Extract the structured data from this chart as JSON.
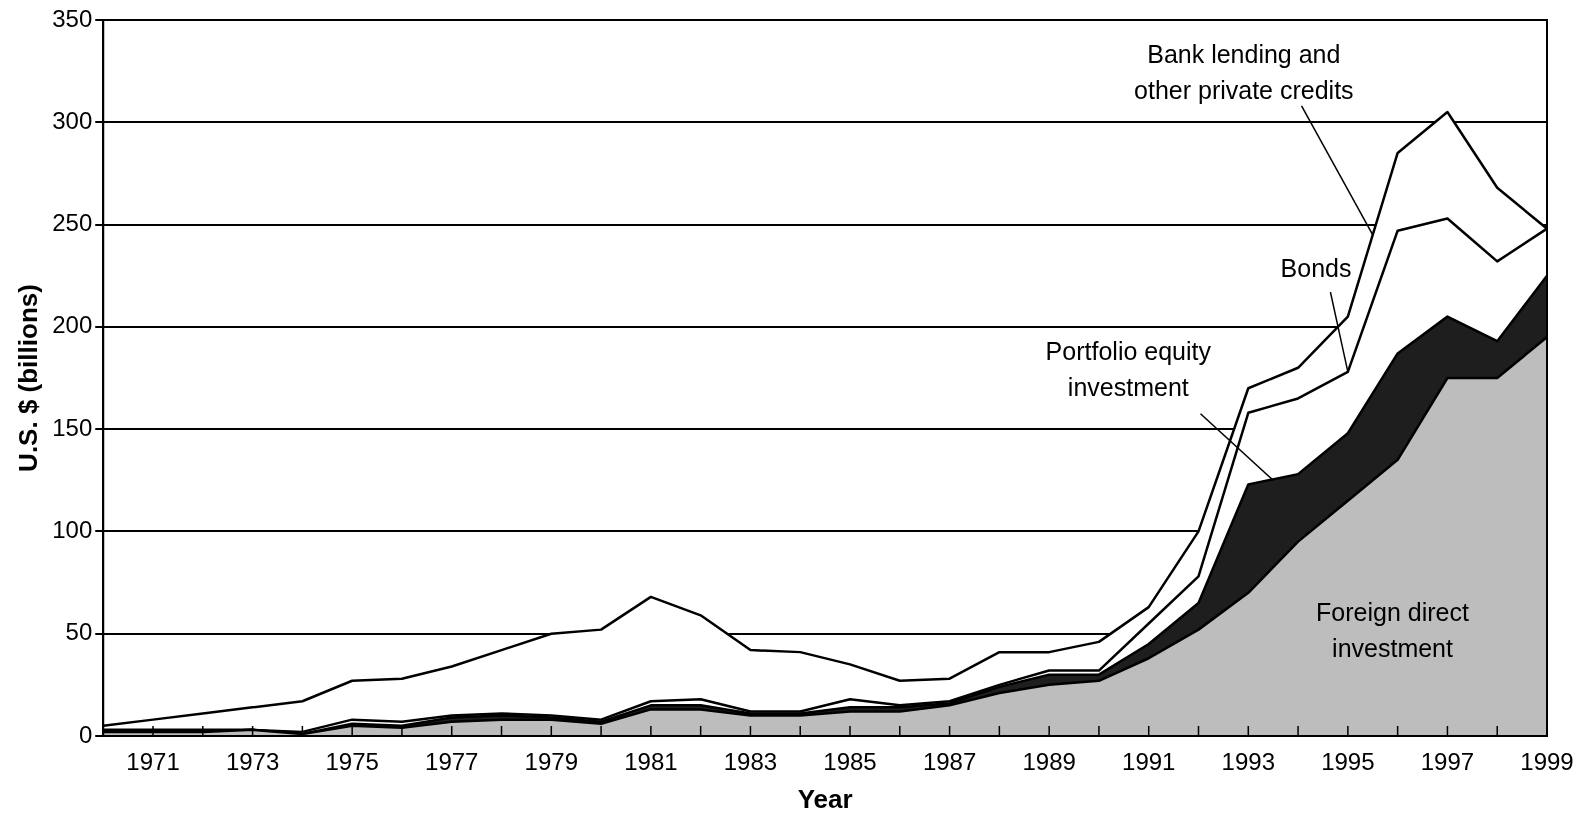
{
  "chart_data": {
    "type": "area",
    "stacked": true,
    "xlabel": "Year",
    "ylabel": "U.S. $ (billions)",
    "x": [
      1970,
      1971,
      1972,
      1973,
      1974,
      1975,
      1976,
      1977,
      1978,
      1979,
      1980,
      1981,
      1982,
      1983,
      1984,
      1985,
      1986,
      1987,
      1988,
      1989,
      1990,
      1991,
      1992,
      1993,
      1994,
      1995,
      1996,
      1997,
      1998,
      1999
    ],
    "series": [
      {
        "color": "#bdbdbd",
        "values": [
          2,
          2,
          2,
          3,
          1,
          5,
          4,
          7,
          8,
          8,
          6,
          13,
          13,
          10,
          10,
          12,
          12,
          15,
          21,
          25,
          27,
          38,
          52,
          70,
          95,
          115,
          135,
          175,
          175,
          195
        ]
      },
      {
        "color": "#1e1e1e",
        "values": [
          0,
          0,
          0,
          0,
          0,
          1,
          1,
          2,
          2,
          1,
          1,
          2,
          2,
          1,
          1,
          2,
          2,
          1,
          3,
          5,
          3,
          7,
          13,
          53,
          33,
          33,
          52,
          30,
          18,
          30
        ]
      },
      {
        "color": "#ffffff",
        "values": [
          1,
          1,
          1,
          0,
          1,
          2,
          2,
          1,
          1,
          1,
          1,
          2,
          3,
          1,
          1,
          4,
          1,
          1,
          1,
          2,
          2,
          10,
          13,
          35,
          37,
          30,
          60,
          48,
          39,
          23
        ]
      },
      {
        "color": "#ffffff",
        "values": [
          2,
          5,
          8,
          11,
          15,
          19,
          21,
          24,
          31,
          40,
          44,
          51,
          41,
          30,
          29,
          17,
          12,
          11,
          16,
          9,
          14,
          8,
          22,
          12,
          15,
          27,
          38,
          52,
          36,
          0
        ]
      }
    ],
    "annotations": [
      {
        "text": "Bank lending and\nother private credits",
        "x": 1995.5,
        "y": 245
      },
      {
        "text": "Bonds",
        "x": 1995,
        "y": 178
      },
      {
        "text": "Portfolio equity\ninvestment",
        "x": 1993.5,
        "y": 125
      },
      "Foreign direct\ninvestment"
    ],
    "xlim": [
      1970,
      1999
    ],
    "xticks": [
      {
        "value": 1970,
        "label": null
      },
      1971,
      {
        "value": 1972,
        "label": null
      },
      1973,
      {
        "value": 1974,
        "label": null
      },
      1975,
      {
        "value": 1976,
        "label": null
      },
      1977,
      {
        "value": 1978,
        "label": null
      },
      1979,
      {
        "value": 1980,
        "label": null
      },
      1981,
      {
        "value": 1982,
        "label": null
      },
      1983,
      {
        "value": 1984,
        "label": null
      },
      1985,
      {
        "value": 1986,
        "label": null
      },
      1987,
      {
        "value": 1988,
        "label": null
      },
      1989,
      {
        "value": 1990,
        "label": null
      },
      1991,
      {
        "value": 1992,
        "label": null
      },
      1993,
      {
        "value": 1994,
        "label": null
      },
      1995,
      {
        "value": 1996,
        "label": null
      },
      1997,
      {
        "value": 1998,
        "label": null
      },
      1999
    ],
    "ylim": [
      0,
      350
    ],
    "yticks": [
      0,
      50,
      100,
      150,
      200,
      250,
      300,
      350
    ],
    "grid": "y",
    "legend": false
  }
}
